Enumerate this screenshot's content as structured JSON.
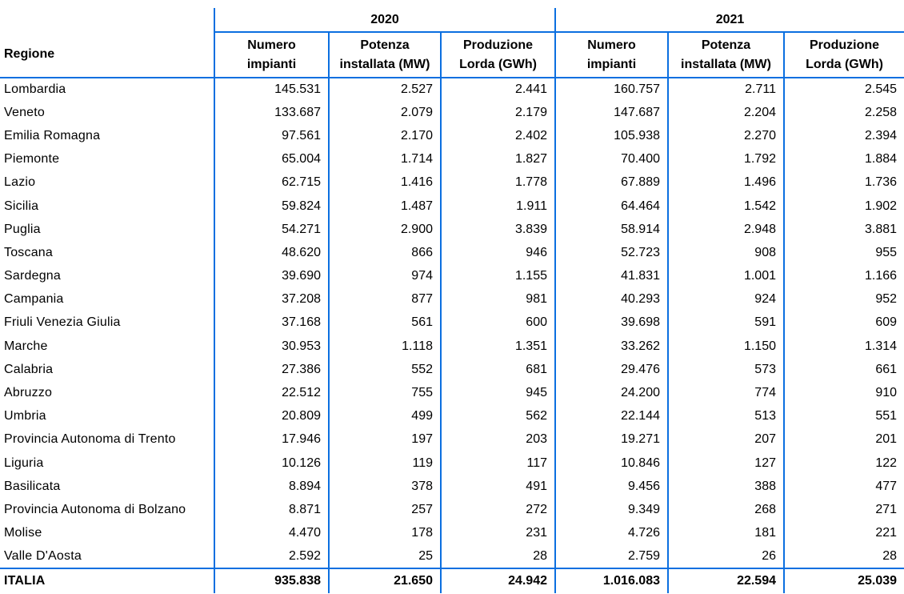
{
  "colors": {
    "border_blue": "#0b6fe0",
    "text": "#000000",
    "background": "#ffffff"
  },
  "chart_data": {
    "type": "table",
    "region_column_header": "Regione",
    "year_groups": [
      {
        "year": "2020",
        "sub_columns": [
          {
            "line1": "Numero",
            "line2": "impianti"
          },
          {
            "line1": "Potenza",
            "line2": "installata (MW)"
          },
          {
            "line1": "Produzione",
            "line2": "Lorda (GWh)"
          }
        ]
      },
      {
        "year": "2021",
        "sub_columns": [
          {
            "line1": "Numero",
            "line2": "impianti"
          },
          {
            "line1": "Potenza",
            "line2": "installata (MW)"
          },
          {
            "line1": "Produzione",
            "line2": "Lorda (GWh)"
          }
        ]
      }
    ],
    "rows": [
      {
        "region": "Lombardia",
        "values": [
          "145.531",
          "2.527",
          "2.441",
          "160.757",
          "2.711",
          "2.545"
        ]
      },
      {
        "region": "Veneto",
        "values": [
          "133.687",
          "2.079",
          "2.179",
          "147.687",
          "2.204",
          "2.258"
        ]
      },
      {
        "region": "Emilia Romagna",
        "values": [
          "97.561",
          "2.170",
          "2.402",
          "105.938",
          "2.270",
          "2.394"
        ]
      },
      {
        "region": "Piemonte",
        "values": [
          "65.004",
          "1.714",
          "1.827",
          "70.400",
          "1.792",
          "1.884"
        ]
      },
      {
        "region": "Lazio",
        "values": [
          "62.715",
          "1.416",
          "1.778",
          "67.889",
          "1.496",
          "1.736"
        ]
      },
      {
        "region": "Sicilia",
        "values": [
          "59.824",
          "1.487",
          "1.911",
          "64.464",
          "1.542",
          "1.902"
        ]
      },
      {
        "region": "Puglia",
        "values": [
          "54.271",
          "2.900",
          "3.839",
          "58.914",
          "2.948",
          "3.881"
        ]
      },
      {
        "region": "Toscana",
        "values": [
          "48.620",
          "866",
          "946",
          "52.723",
          "908",
          "955"
        ]
      },
      {
        "region": "Sardegna",
        "values": [
          "39.690",
          "974",
          "1.155",
          "41.831",
          "1.001",
          "1.166"
        ]
      },
      {
        "region": "Campania",
        "values": [
          "37.208",
          "877",
          "981",
          "40.293",
          "924",
          "952"
        ]
      },
      {
        "region": "Friuli Venezia Giulia",
        "values": [
          "37.168",
          "561",
          "600",
          "39.698",
          "591",
          "609"
        ]
      },
      {
        "region": "Marche",
        "values": [
          "30.953",
          "1.118",
          "1.351",
          "33.262",
          "1.150",
          "1.314"
        ]
      },
      {
        "region": "Calabria",
        "values": [
          "27.386",
          "552",
          "681",
          "29.476",
          "573",
          "661"
        ]
      },
      {
        "region": "Abruzzo",
        "values": [
          "22.512",
          "755",
          "945",
          "24.200",
          "774",
          "910"
        ]
      },
      {
        "region": "Umbria",
        "values": [
          "20.809",
          "499",
          "562",
          "22.144",
          "513",
          "551"
        ]
      },
      {
        "region": "Provincia Autonoma di Trento",
        "values": [
          "17.946",
          "197",
          "203",
          "19.271",
          "207",
          "201"
        ]
      },
      {
        "region": "Liguria",
        "values": [
          "10.126",
          "119",
          "117",
          "10.846",
          "127",
          "122"
        ]
      },
      {
        "region": "Basilicata",
        "values": [
          "8.894",
          "378",
          "491",
          "9.456",
          "388",
          "477"
        ]
      },
      {
        "region": "Provincia Autonoma di Bolzano",
        "values": [
          "8.871",
          "257",
          "272",
          "9.349",
          "268",
          "271"
        ]
      },
      {
        "region": "Molise",
        "values": [
          "4.470",
          "178",
          "231",
          "4.726",
          "181",
          "221"
        ]
      },
      {
        "region": "Valle D'Aosta",
        "values": [
          "2.592",
          "25",
          "28",
          "2.759",
          "26",
          "28"
        ]
      }
    ],
    "total_row": {
      "region": "ITALIA",
      "values": [
        "935.838",
        "21.650",
        "24.942",
        "1.016.083",
        "22.594",
        "25.039"
      ]
    }
  }
}
